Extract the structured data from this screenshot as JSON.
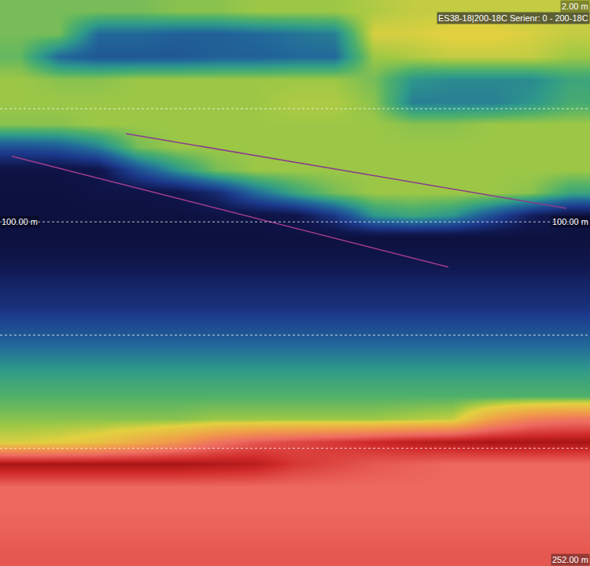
{
  "chart_data": {
    "type": "heatmap",
    "title": "ES38-18|200-18C Serienr: 0 - 200-18C",
    "x": [
      0,
      1,
      2,
      3,
      4,
      5,
      6,
      7,
      8,
      9,
      10,
      11,
      12,
      13,
      14
    ],
    "y": [
      7,
      17,
      27,
      37,
      47,
      57,
      67,
      77,
      87,
      97,
      107,
      117,
      127,
      137,
      147,
      157,
      167,
      177,
      187,
      197,
      207,
      217,
      227,
      237,
      247
    ],
    "cells": [
      [
        -62,
        -62,
        -62,
        -62,
        -61,
        -61,
        -60,
        -60,
        -60,
        -59,
        -58,
        -58,
        -58,
        -58,
        -58
      ],
      [
        -62,
        -62,
        -72,
        -72,
        -73,
        -73,
        -72,
        -71,
        -70,
        -57,
        -57,
        -56,
        -56,
        -57,
        -58
      ],
      [
        -63,
        -72,
        -74,
        -74,
        -74,
        -73,
        -73,
        -72,
        -72,
        -60,
        -59,
        -58,
        -58,
        -58,
        -60
      ],
      [
        -60,
        -61,
        -61,
        -60,
        -60,
        -60,
        -60,
        -60,
        -60,
        -62,
        -68,
        -69,
        -69,
        -69,
        -66
      ],
      [
        -60,
        -60,
        -60,
        -60,
        -60,
        -60,
        -60,
        -59,
        -59,
        -61,
        -70,
        -70,
        -70,
        -68,
        -65
      ],
      [
        -61,
        -61,
        -60,
        -60,
        -60,
        -60,
        -60,
        -60,
        -60,
        -60,
        -61,
        -61,
        -60,
        -60,
        -60
      ],
      [
        -75,
        -74,
        -70,
        -62,
        -60,
        -60,
        -60,
        -60,
        -60,
        -60,
        -60,
        -60,
        -60,
        -60,
        -60
      ],
      [
        -85,
        -85,
        -84,
        -75,
        -68,
        -62,
        -60,
        -60,
        -60,
        -60,
        -60,
        -60,
        -60,
        -60,
        -60
      ],
      [
        -86,
        -86,
        -85,
        -85,
        -84,
        -80,
        -72,
        -66,
        -62,
        -60,
        -60,
        -60,
        -60,
        -61,
        -66
      ],
      [
        -86,
        -86,
        -86,
        -86,
        -86,
        -85,
        -85,
        -84,
        -78,
        -68,
        -66,
        -68,
        -75,
        -82,
        -85
      ],
      [
        -86,
        -86,
        -86,
        -86,
        -86,
        -86,
        -86,
        -86,
        -86,
        -86,
        -86,
        -86,
        -86,
        -86,
        -86
      ],
      [
        -84,
        -84,
        -84,
        -84,
        -84,
        -84,
        -84,
        -84,
        -84,
        -84,
        -84,
        -84,
        -84,
        -84,
        -84
      ],
      [
        -81,
        -81,
        -81,
        -81,
        -81,
        -81,
        -81,
        -81,
        -81,
        -81,
        -81,
        -81,
        -81,
        -81,
        -81
      ],
      [
        -79,
        -79,
        -79,
        -79,
        -79,
        -79,
        -79,
        -79,
        -79,
        -79,
        -79,
        -79,
        -79,
        -79,
        -79
      ],
      [
        -75,
        -75,
        -75,
        -75,
        -75,
        -75,
        -75,
        -75,
        -75,
        -75,
        -75,
        -75,
        -75,
        -75,
        -75
      ],
      [
        -71,
        -71,
        -71,
        -71,
        -71,
        -71,
        -71,
        -71,
        -71,
        -71,
        -71,
        -71,
        -71,
        -71,
        -71
      ],
      [
        -67,
        -67,
        -67,
        -67,
        -67,
        -67,
        -67,
        -67,
        -67,
        -67,
        -67,
        -67,
        -67,
        -67,
        -67
      ],
      [
        -64,
        -64,
        -64,
        -64,
        -64,
        -64,
        -64,
        -64,
        -64,
        -64,
        -64,
        -64,
        -64,
        -64,
        -64
      ],
      [
        -61,
        -61,
        -61,
        -61,
        -61,
        -60,
        -60,
        -60,
        -60,
        -60,
        -59,
        -58,
        -48,
        -42,
        -40
      ],
      [
        -57,
        -56,
        -54,
        -50,
        -46,
        -40,
        -36,
        -34,
        -32,
        -30,
        -28,
        -27,
        -26,
        -26,
        -26
      ],
      [
        -26,
        -26,
        -26,
        -26,
        -26,
        -27,
        -28,
        -32,
        -34,
        -36,
        -37,
        -38,
        -38,
        -38,
        -38
      ],
      [
        -38,
        -38,
        -38,
        -38,
        -38,
        -38,
        -38,
        -38,
        -38,
        -38,
        -38,
        -38,
        -38,
        -38,
        -38
      ],
      [
        -38,
        -38,
        -38,
        -38,
        -38,
        -38,
        -38,
        -38,
        -38,
        -38,
        -38,
        -38,
        -38,
        -38,
        -38
      ],
      [
        -37,
        -37,
        -37,
        -37,
        -37,
        -37,
        -37,
        -37,
        -37,
        -37,
        -37,
        -37,
        -37,
        -37,
        -37
      ],
      [
        -36,
        -36,
        -36,
        -36,
        -36,
        -36,
        -36,
        -36,
        -36,
        -36,
        -36,
        -36,
        -36,
        -36,
        -36
      ]
    ],
    "zlim": [
      -90,
      -20
    ],
    "xlim": [
      -0.5,
      14.5
    ],
    "ylim": [
      252,
      2
    ],
    "yticks": [
      50,
      100,
      150,
      200
    ],
    "grid": true,
    "tick_labels": false,
    "series": [
      {
        "type": "line",
        "color": "#a03c8c",
        "x": [
          -0.2,
          10.9
        ],
        "y": [
          71,
          120
        ]
      },
      {
        "type": "line",
        "color": "#8a3c8c",
        "x": [
          2.7,
          13.9
        ],
        "y": [
          61,
          94
        ]
      }
    ],
    "annotations": [
      {
        "text": "2.00 m",
        "y": 2,
        "align": "right"
      },
      {
        "text": "100.00 m",
        "y": 100,
        "align": "left"
      },
      {
        "text": "100.00 m",
        "y": 100,
        "align": "right"
      },
      {
        "text": "252.00 m",
        "y": 252,
        "align": "right"
      }
    ]
  }
}
